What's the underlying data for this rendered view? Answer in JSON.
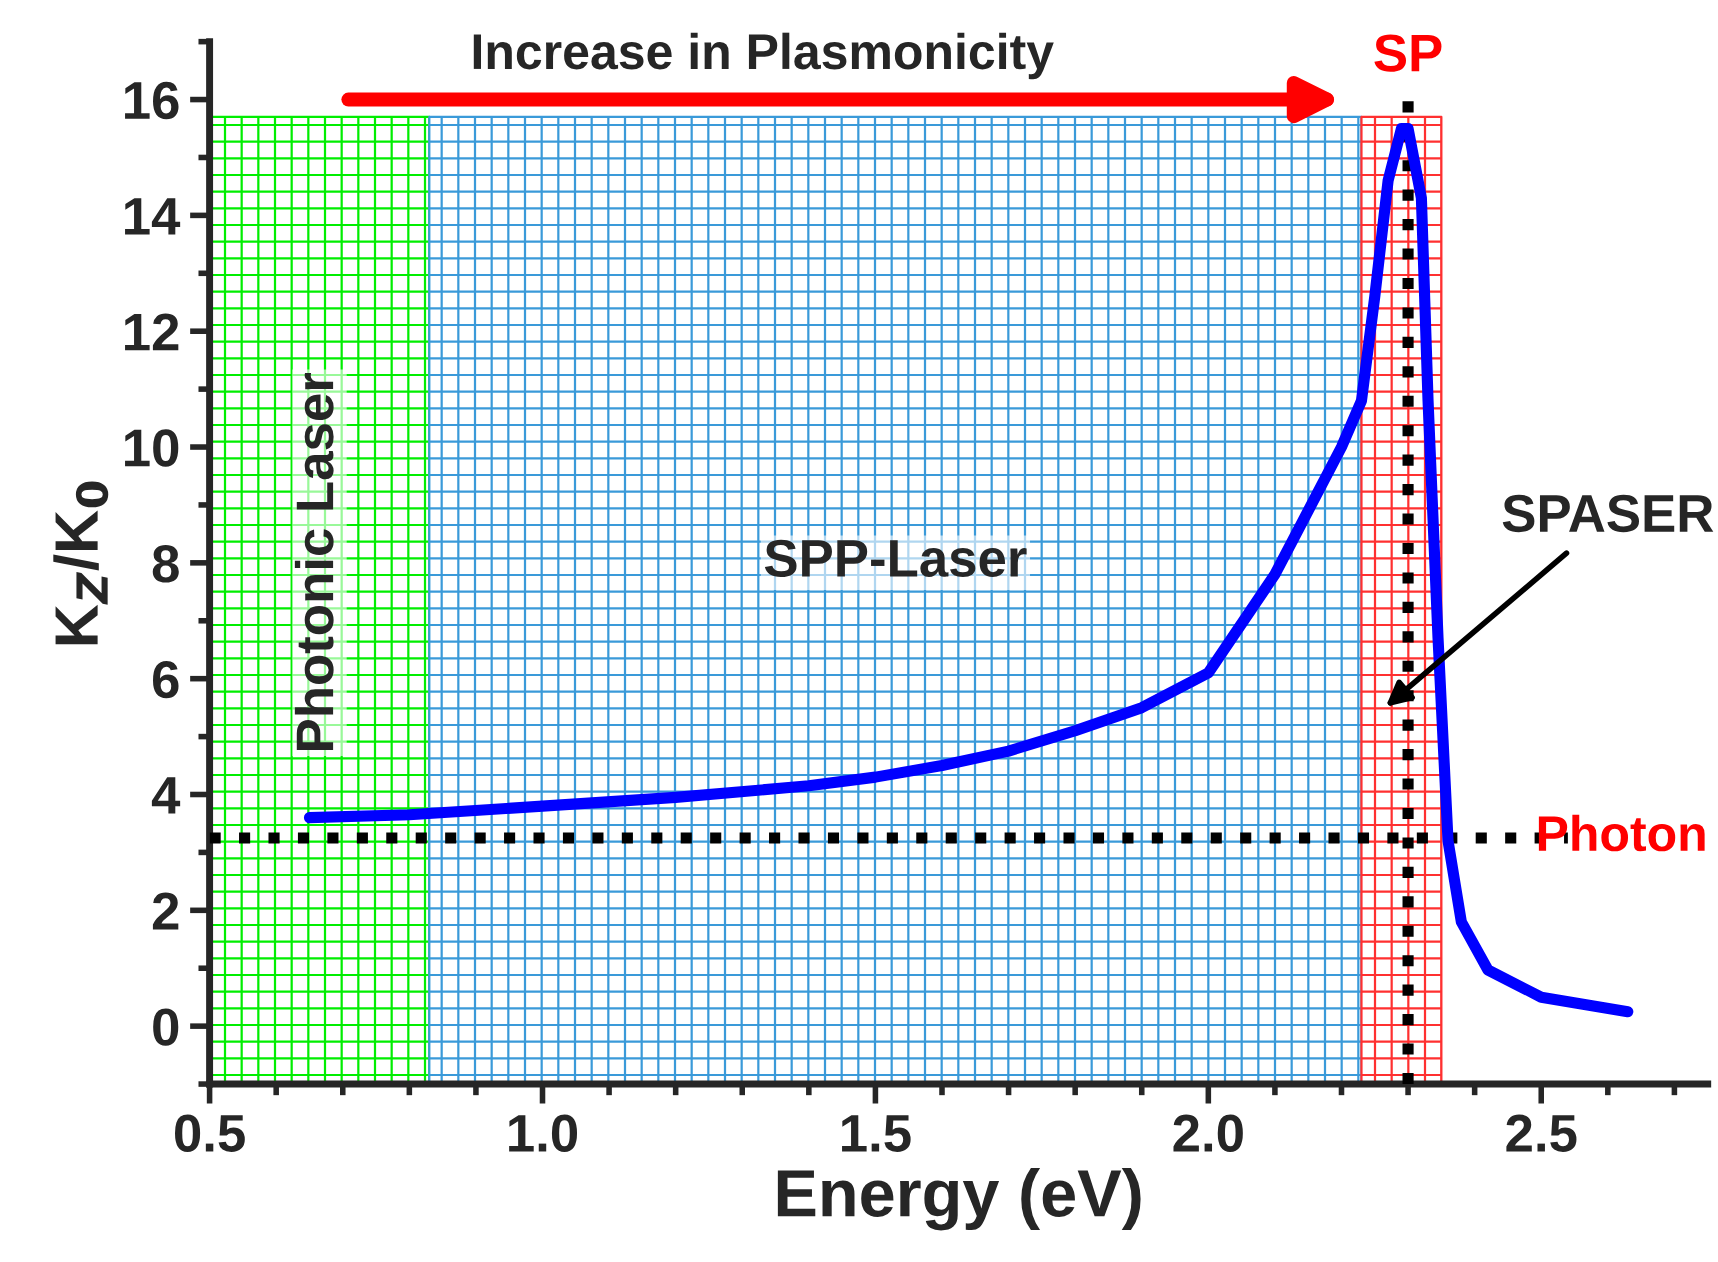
{
  "chart_data": {
    "type": "line",
    "xlabel": "Energy (eV)",
    "ylabel": "K$_{Z}$/K$_{0}$",
    "xlim": [
      0.5,
      2.75
    ],
    "xticks": [
      {
        "value": 0.5,
        "label": "0.5"
      },
      {
        "value": 1.0,
        "label": "1.0"
      },
      {
        "value": 1.5,
        "label": "1.5"
      },
      {
        "value": 2.0,
        "label": "2.0"
      },
      {
        "value": 2.5,
        "label": "2.5"
      }
    ],
    "ylim": [
      -1,
      17
    ],
    "yticks": [
      0,
      2,
      4,
      6,
      8,
      10,
      12,
      14,
      16
    ],
    "grid": false,
    "marker": "none",
    "line_style": "solid",
    "series": [
      {
        "color": "#0000ff",
        "x": [
          0.65,
          0.8,
          1.0,
          1.2,
          1.4,
          1.5,
          1.6,
          1.7,
          1.8,
          1.9,
          2.0,
          2.1,
          2.2,
          2.23,
          2.25,
          2.27,
          2.29,
          2.3,
          2.32,
          2.33,
          2.345,
          2.36,
          2.38,
          2.42,
          2.5,
          2.63
        ],
        "values": [
          3.6,
          3.65,
          3.8,
          3.95,
          4.15,
          4.3,
          4.5,
          4.75,
          5.1,
          5.5,
          6.1,
          7.8,
          10.0,
          10.8,
          12.6,
          14.6,
          15.5,
          15.5,
          14.3,
          10.8,
          6.7,
          3.2,
          1.8,
          0.97,
          0.5,
          0.25
        ]
      }
    ],
    "bands": [
      {
        "axis": "x",
        "from": 0.5,
        "to": 0.83,
        "label": "Photonic Laser",
        "color": "#00ee00"
      },
      {
        "axis": "x",
        "from": 0.83,
        "to": 2.23,
        "label": "SPP-Laser",
        "color": "#3a9ad9"
      },
      {
        "axis": "x",
        "from": 2.23,
        "to": 2.35,
        "color": "#ff3030"
      }
    ],
    "ref_lines": [
      {
        "axis": "y",
        "value": 3.25,
        "label": "Photon",
        "color": "#000000",
        "line_style": "dotted"
      },
      {
        "axis": "x",
        "value": 2.3,
        "label": "SP",
        "color": "#000000",
        "line_style": "dotted"
      }
    ],
    "annotations": [
      "Increase in Plasmonicity",
      "SPASER"
    ]
  }
}
